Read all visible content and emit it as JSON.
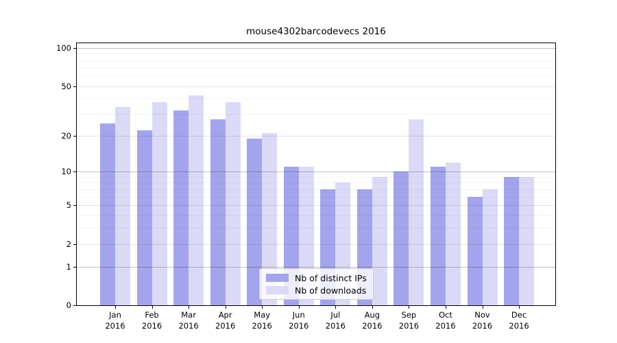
{
  "chart_data": {
    "type": "bar",
    "title": "mouse4302barcodevecs 2016",
    "categories": [
      "Jan 2016",
      "Feb 2016",
      "Mar 2016",
      "Apr 2016",
      "May 2016",
      "Jun 2016",
      "Jul 2016",
      "Aug 2016",
      "Sep 2016",
      "Oct 2016",
      "Nov 2016",
      "Dec 2016"
    ],
    "series": [
      {
        "name": "Nb of distinct IPs",
        "color": "#a4a4ec",
        "values": [
          25,
          22,
          32,
          27,
          19,
          11,
          7,
          7,
          10,
          11,
          6,
          9
        ]
      },
      {
        "name": "Nb of downloads",
        "color": "#dadaf7",
        "values": [
          34,
          37,
          42,
          37,
          21,
          11,
          8,
          9,
          27,
          12,
          7,
          9
        ]
      }
    ],
    "xlabel": "",
    "ylabel": "",
    "yscale": "log1p",
    "ylim": [
      0,
      110
    ],
    "yticks": [
      0,
      1,
      2,
      5,
      10,
      20,
      50,
      100
    ],
    "decade_ticks": [
      1,
      10,
      100
    ],
    "minor_gridlines": [
      3,
      4,
      6,
      7,
      8,
      9,
      30,
      40,
      60,
      70,
      80,
      90
    ],
    "grid": "on",
    "legend_position": "lower center"
  }
}
